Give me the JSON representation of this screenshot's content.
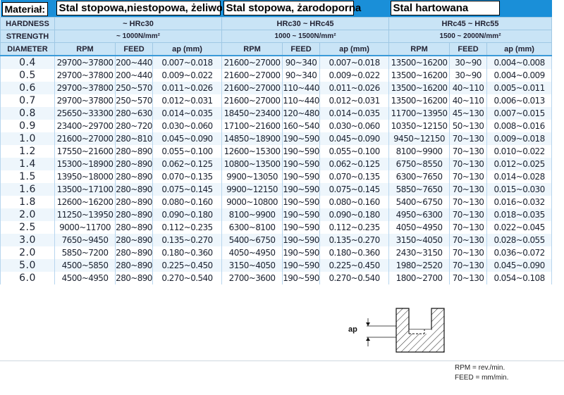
{
  "material_label": "Materiał:",
  "materials": [
    "Stal stopowa,niestopowa, żeliwo",
    "Stal stopowa, żarodoporna",
    "Stal hartowana"
  ],
  "row_labels": {
    "hardness": "HARDNESS",
    "strength": "STRENGTH",
    "diameter": "DIAMETER"
  },
  "hardness": [
    "~ HRc30",
    "HRc30 ~ HRc45",
    "HRc45 ~ HRc55"
  ],
  "strength": [
    "~ 1000N/mm²",
    "1000 ~ 1500N/mm²",
    "1500 ~ 2000N/mm²"
  ],
  "col_heads": [
    "RPM",
    "FEED",
    "ap (mm)"
  ],
  "rows": [
    [
      "0.4",
      "29700~37800",
      "200~440",
      "0.007~0.018",
      "21600~27000",
      "90~340",
      "0.007~0.018",
      "13500~16200",
      "30~90",
      "0.004~0.008"
    ],
    [
      "0.5",
      "29700~37800",
      "200~440",
      "0.009~0.022",
      "21600~27000",
      "90~340",
      "0.009~0.022",
      "13500~16200",
      "30~90",
      "0.004~0.009"
    ],
    [
      "0.6",
      "29700~37800",
      "250~570",
      "0.011~0.026",
      "21600~27000",
      "110~440",
      "0.011~0.026",
      "13500~16200",
      "40~110",
      "0.005~0.011"
    ],
    [
      "0.7",
      "29700~37800",
      "250~570",
      "0.012~0.031",
      "21600~27000",
      "110~440",
      "0.012~0.031",
      "13500~16200",
      "40~110",
      "0.006~0.013"
    ],
    [
      "0.8",
      "25650~33300",
      "280~630",
      "0.014~0.035",
      "18450~23400",
      "120~480",
      "0.014~0.035",
      "11700~13950",
      "45~130",
      "0.007~0.015"
    ],
    [
      "0.9",
      "23400~29700",
      "280~720",
      "0.030~0.060",
      "17100~21600",
      "160~540",
      "0.030~0.060",
      "10350~12150",
      "50~130",
      "0.008~0.016"
    ],
    [
      "1.0",
      "21600~27000",
      "280~810",
      "0.045~0.090",
      "14850~18900",
      "190~590",
      "0.045~0.090",
      "9450~12150",
      "70~130",
      "0.009~0.018"
    ],
    [
      "1.2",
      "17550~21600",
      "280~890",
      "0.055~0.100",
      "12600~15300",
      "190~590",
      "0.055~0.100",
      "8100~9900",
      "70~130",
      "0.010~0.022"
    ],
    [
      "1.4",
      "15300~18900",
      "280~890",
      "0.062~0.125",
      "10800~13500",
      "190~590",
      "0.062~0.125",
      "6750~8550",
      "70~130",
      "0.012~0.025"
    ],
    [
      "1.5",
      "13950~18000",
      "280~890",
      "0.070~0.135",
      "9900~13050",
      "190~590",
      "0.070~0.135",
      "6300~7650",
      "70~130",
      "0.014~0.028"
    ],
    [
      "1.6",
      "13500~17100",
      "280~890",
      "0.075~0.145",
      "9900~12150",
      "190~590",
      "0.075~0.145",
      "5850~7650",
      "70~130",
      "0.015~0.030"
    ],
    [
      "1.8",
      "12600~16200",
      "280~890",
      "0.080~0.160",
      "9000~10800",
      "190~590",
      "0.080~0.160",
      "5400~6750",
      "70~130",
      "0.016~0.032"
    ],
    [
      "2.0",
      "11250~13950",
      "280~890",
      "0.090~0.180",
      "8100~9900",
      "190~590",
      "0.090~0.180",
      "4950~6300",
      "70~130",
      "0.018~0.035"
    ],
    [
      "2.5",
      "9000~11700",
      "280~890",
      "0.112~0.235",
      "6300~8100",
      "190~590",
      "0.112~0.235",
      "4050~4950",
      "70~130",
      "0.022~0.045"
    ],
    [
      "3.0",
      "7650~9450",
      "280~890",
      "0.135~0.270",
      "5400~6750",
      "190~590",
      "0.135~0.270",
      "3150~4050",
      "70~130",
      "0.028~0.055"
    ],
    [
      "2.0",
      "5850~7200",
      "280~890",
      "0.180~0.360",
      "4050~4950",
      "190~590",
      "0.180~0.360",
      "2430~3150",
      "70~130",
      "0.036~0.072"
    ],
    [
      "5.0",
      "4500~5850",
      "280~890",
      "0.225~0.450",
      "3150~4050",
      "190~590",
      "0.225~0.450",
      "1980~2520",
      "70~130",
      "0.045~0.090"
    ],
    [
      "6.0",
      "4500~4950",
      "280~890",
      "0.270~0.540",
      "2700~3600",
      "190~590",
      "0.270~0.540",
      "1800~2700",
      "70~130",
      "0.054~0.108"
    ]
  ],
  "diagram_label": "ap",
  "notes": [
    "RPM = rev./min.",
    "FEED = mm/min."
  ]
}
